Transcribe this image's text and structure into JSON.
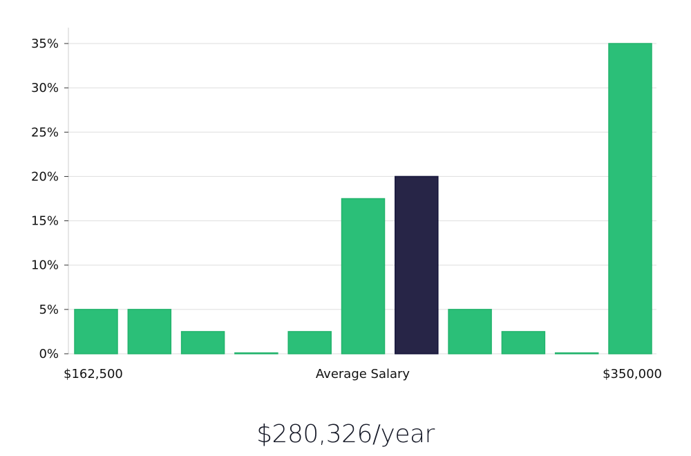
{
  "chart_data": {
    "type": "bar",
    "title": "",
    "xlabel": "Average Salary",
    "ylabel": "",
    "ylim": [
      0,
      35
    ],
    "y_ticks": [
      "0%",
      "5%",
      "10%",
      "15%",
      "20%",
      "25%",
      "30%",
      "35%"
    ],
    "y_tick_values": [
      0,
      5,
      10,
      15,
      20,
      25,
      30,
      35
    ],
    "x_min_label": "$162,500",
    "x_max_label": "$350,000",
    "values": [
      5,
      5,
      2.5,
      0,
      2.5,
      17.5,
      20,
      5,
      2.5,
      0,
      35
    ],
    "highlight_index": 6,
    "grid": true,
    "colors": {
      "bar": "#2bbf78",
      "bar_edge": "#22b36c",
      "highlight": "#272547",
      "highlight_edge": "#15143a",
      "grid": "#dddddd",
      "axis": "#cccccc"
    }
  },
  "salary_text": "$280,326/year"
}
